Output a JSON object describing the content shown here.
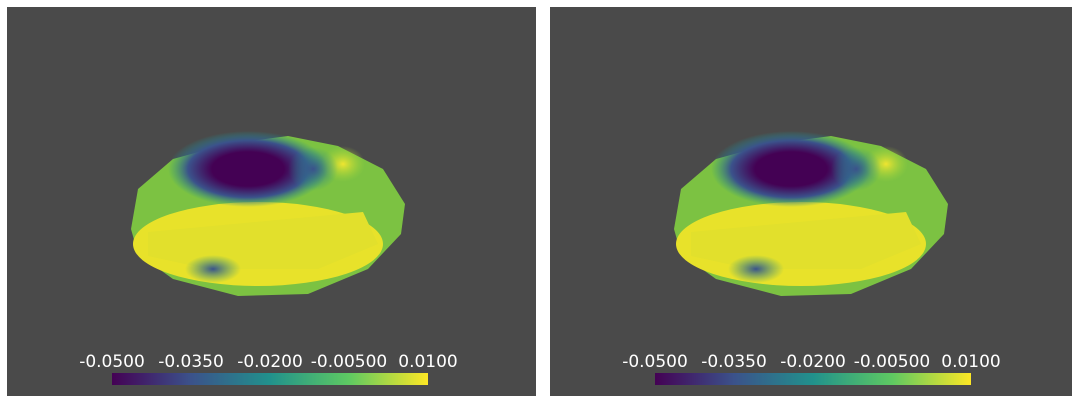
{
  "panels": [
    {
      "colorbar": {
        "range": [
          -0.05,
          0.01
        ],
        "ticks": [
          {
            "value": -0.05,
            "label": "-0.0500"
          },
          {
            "value": -0.035,
            "label": "-0.0350"
          },
          {
            "value": -0.02,
            "label": "-0.0200"
          },
          {
            "value": -0.005,
            "label": "-0.00500"
          },
          {
            "value": 0.01,
            "label": "0.0100"
          }
        ]
      }
    },
    {
      "colorbar": {
        "range": [
          -0.05,
          0.01
        ],
        "ticks": [
          {
            "value": -0.05,
            "label": "-0.0500"
          },
          {
            "value": -0.035,
            "label": "-0.0350"
          },
          {
            "value": -0.02,
            "label": "-0.0200"
          },
          {
            "value": -0.005,
            "label": "-0.00500"
          },
          {
            "value": 0.01,
            "label": "0.0100"
          }
        ]
      }
    }
  ]
}
